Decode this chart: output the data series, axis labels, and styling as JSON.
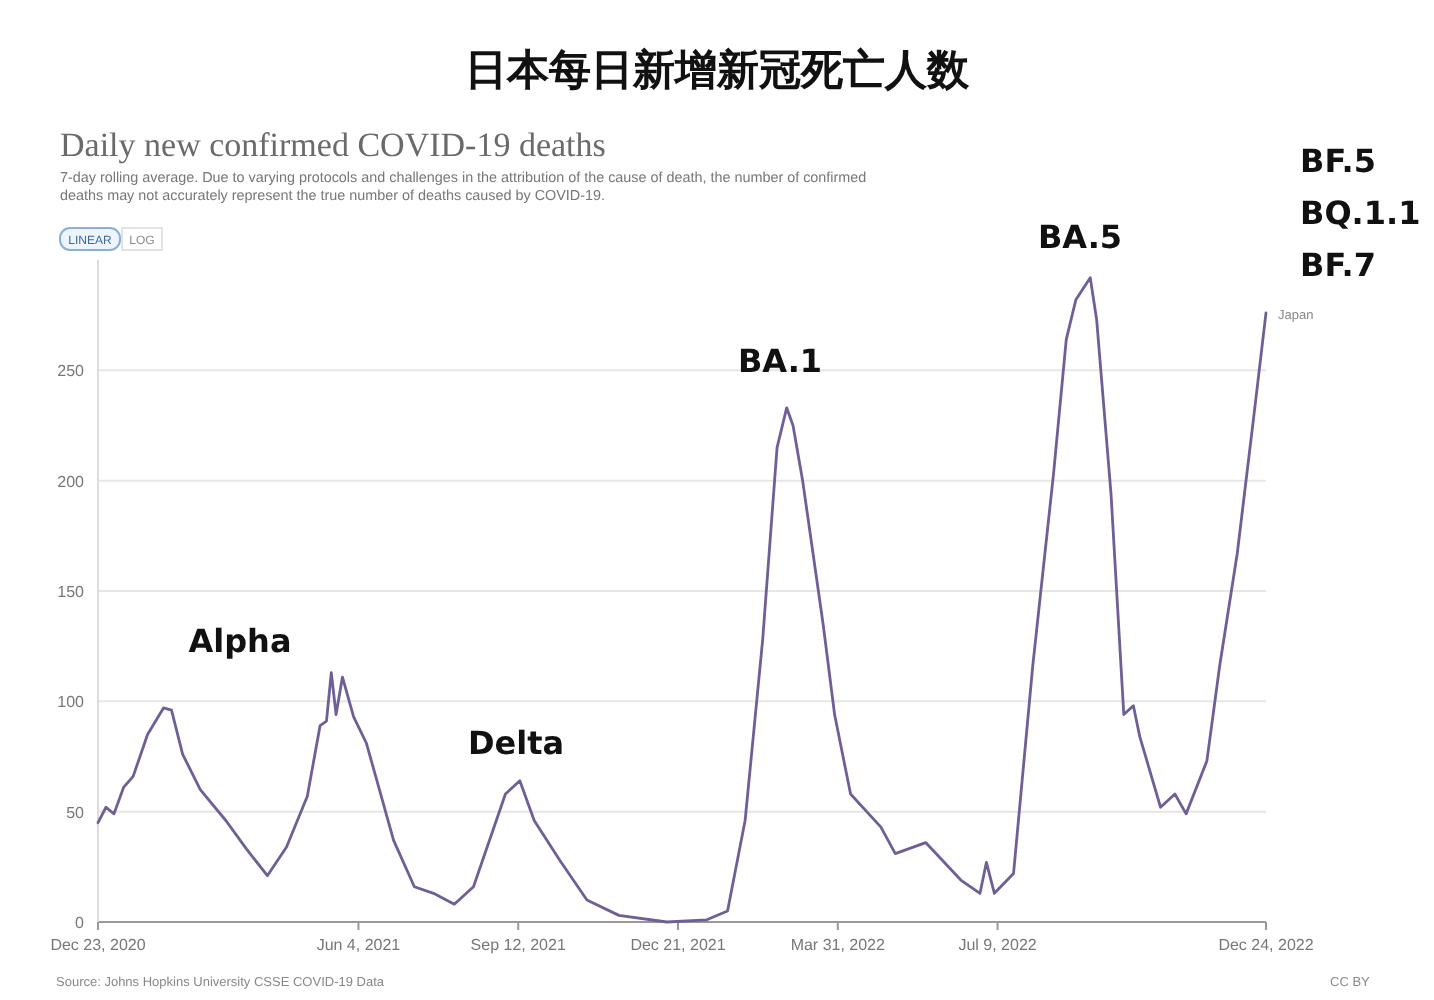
{
  "chart_data": {
    "type": "line",
    "title": "日本每日新增新冠死亡人数",
    "subtitle": "Daily new confirmed COVID-19 deaths",
    "annotations": [
      "7-day rolling average. Due to varying protocols and challenges in the attribution of the cause of death, the number of confirmed deaths may not accurately represent the true number of deaths caused by COVID-19.",
      "LINEAR",
      "LOG",
      "Source: Johns Hopkins University CSSE COVID-19 Data",
      "CC BY",
      "Alpha",
      "Delta",
      "BA.1",
      "BA.5",
      "BF.5",
      "BQ.1.1",
      "BF.7"
    ],
    "x": [
      "2020-12-23",
      "2020-12-28",
      "2021-01-02",
      "2021-01-08",
      "2021-01-14",
      "2021-01-23",
      "2021-02-02",
      "2021-02-07",
      "2021-02-14",
      "2021-02-25",
      "2021-03-13",
      "2021-03-26",
      "2021-04-08",
      "2021-04-20",
      "2021-05-03",
      "2021-05-11",
      "2021-05-15",
      "2021-05-18",
      "2021-05-21",
      "2021-05-25",
      "2021-06-01",
      "2021-06-09",
      "2021-06-26",
      "2021-07-09",
      "2021-07-21",
      "2021-08-03",
      "2021-08-15",
      "2021-09-04",
      "2021-09-13",
      "2021-09-22",
      "2021-10-08",
      "2021-10-25",
      "2021-11-14",
      "2021-12-14",
      "2022-01-08",
      "2022-01-21",
      "2022-02-01",
      "2022-02-12",
      "2022-02-21",
      "2022-02-27",
      "2022-03-03",
      "2022-03-09",
      "2022-03-22",
      "2022-03-29",
      "2022-04-08",
      "2022-04-27",
      "2022-05-06",
      "2022-05-25",
      "2022-06-16",
      "2022-06-28",
      "2022-07-02",
      "2022-07-07",
      "2022-07-19",
      "2022-07-31",
      "2022-08-13",
      "2022-08-21",
      "2022-08-27",
      "2022-09-05",
      "2022-09-09",
      "2022-09-18",
      "2022-09-26",
      "2022-10-02",
      "2022-10-06",
      "2022-10-19",
      "2022-10-28",
      "2022-11-04",
      "2022-11-17",
      "2022-11-25",
      "2022-12-06",
      "2022-12-16",
      "2022-12-24"
    ],
    "series": [
      {
        "name": "Japan",
        "color": "#6f5f96",
        "values": [
          45,
          52,
          49,
          61,
          66,
          85,
          97,
          96,
          76,
          60,
          46,
          33,
          21,
          34,
          57,
          89,
          91,
          113,
          94,
          111,
          93,
          81,
          37,
          16,
          13,
          8,
          16,
          58,
          64,
          46,
          28,
          10,
          3,
          0,
          1,
          5,
          46,
          128,
          215,
          233,
          225,
          200,
          134,
          94,
          58,
          43,
          31,
          36,
          19,
          13,
          27,
          13,
          22,
          116,
          203,
          264,
          282,
          292,
          273,
          194,
          94,
          98,
          84,
          52,
          58,
          49,
          73,
          116,
          167,
          227,
          276
        ]
      }
    ],
    "xlim": [
      "2020-12-23",
      "2022-12-24"
    ],
    "xticks": [
      {
        "value": "2020-12-23",
        "label": "Dec 23, 2020"
      },
      {
        "value": "2021-06-04",
        "label": "Jun 4, 2021"
      },
      {
        "value": "2021-09-12",
        "label": "Sep 12, 2021"
      },
      {
        "value": "2021-12-21",
        "label": "Dec 21, 2021"
      },
      {
        "value": "2022-03-31",
        "label": "Mar 31, 2022"
      },
      {
        "value": "2022-07-09",
        "label": "Jul 9, 2022"
      },
      {
        "value": "2022-12-24",
        "label": "Dec 24, 2022"
      }
    ],
    "ylim": [
      0,
      300
    ],
    "yticks": [
      0,
      50,
      100,
      150,
      200,
      250
    ],
    "grid": "y",
    "legend": false,
    "marker": "none",
    "line_style": "solid"
  }
}
